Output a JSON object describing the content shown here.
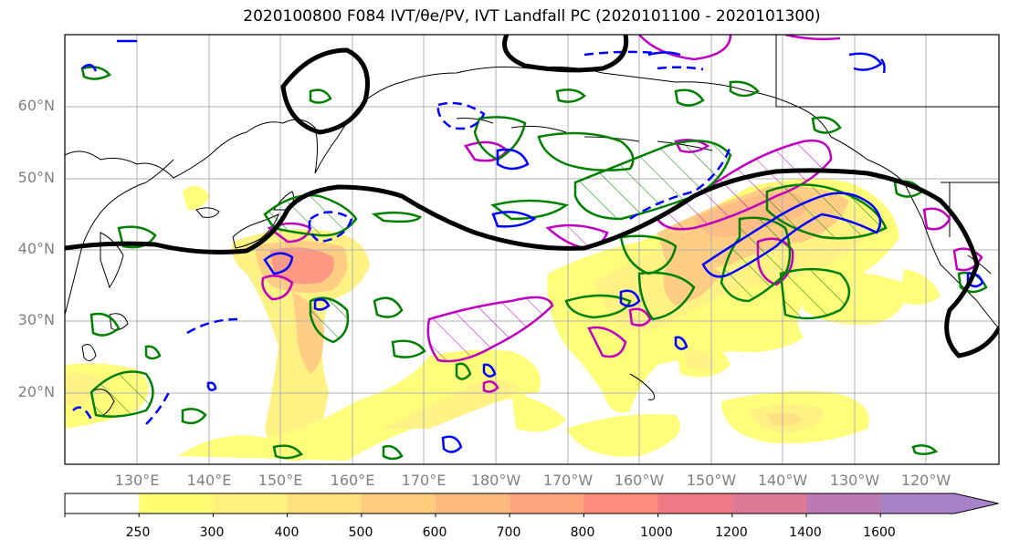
{
  "title": "2020100800 F084 IVT/θe/PV, IVT Landfall PC (2020101100 - 2020101300)",
  "lat_labels": [
    "60°N",
    "50°N",
    "40°N",
    "30°N",
    "20°N"
  ],
  "lon_labels": [
    "130°E",
    "140°E",
    "150°E",
    "160°E",
    "170°E",
    "180°W",
    "170°W",
    "160°W",
    "150°W",
    "140°W",
    "130°W",
    "120°W"
  ],
  "colorbar": {
    "ticks": [
      "250",
      "300",
      "400",
      "500",
      "600",
      "700",
      "800",
      "1000",
      "1200",
      "1400",
      "1600"
    ],
    "colors": [
      "#ffffff",
      "#fffe73",
      "#fff27f",
      "#ffe07c",
      "#ffcc7e",
      "#ffba80",
      "#ffa67e",
      "#ff8a7d",
      "#ee7b85",
      "#dc7a98",
      "#bb7ab4",
      "#a983c7"
    ]
  },
  "contour_colors": {
    "theta_e_pos": "#008000",
    "theta_e_neg": "#0000ff",
    "pv": "#c000c0",
    "landfall": "#000000"
  }
}
